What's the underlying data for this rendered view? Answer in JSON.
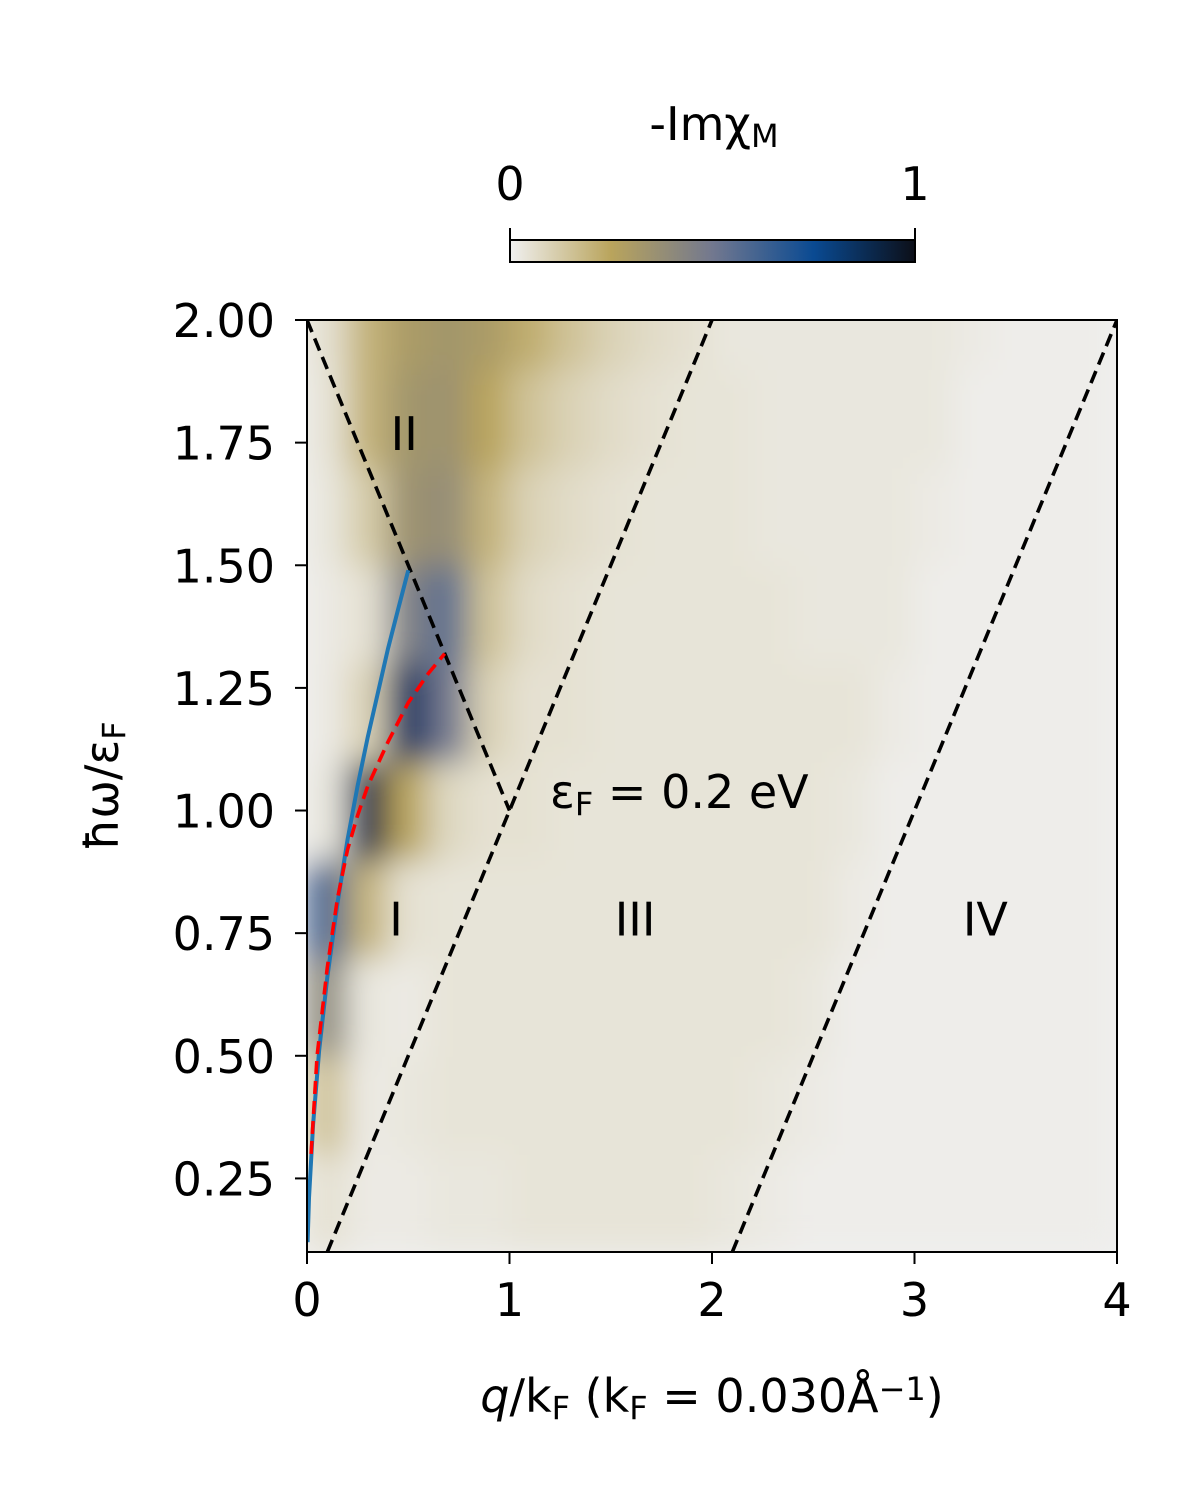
{
  "chart_data": {
    "type": "heatmap",
    "colorbar": {
      "label": [
        {
          "t": "-Imχ"
        },
        {
          "sub": "M"
        }
      ],
      "clim": [
        0,
        1
      ],
      "ticks": [
        0,
        1
      ]
    },
    "colormap": [
      "#f0f0f0",
      "#b9a45c",
      "#72788f",
      "#0a4a92",
      "#0c0f18"
    ],
    "xlabel": [
      {
        "t": "q"
      },
      {
        "t": "/k"
      },
      {
        "sub": "F"
      },
      {
        "t": " (k"
      },
      {
        "sub": "F"
      },
      {
        "t": " = 0.030Å"
      },
      {
        "sup": "−1"
      },
      {
        "t": ")"
      }
    ],
    "ylabel": [
      {
        "t": "ħω/ε"
      },
      {
        "sub": "F"
      }
    ],
    "xlim": [
      0,
      4
    ],
    "ylim": [
      0.1,
      2.0
    ],
    "xticks": [
      0,
      1,
      2,
      3,
      4
    ],
    "yticks": [
      0.25,
      {
        "value": 0.5,
        "label": "0.50"
      },
      0.75,
      {
        "value": 1.0,
        "label": "1.00"
      },
      1.25,
      {
        "value": 1.5,
        "label": "1.50"
      },
      1.75,
      {
        "value": 2.0,
        "label": "2.00"
      }
    ],
    "heatmap": {
      "x": [
        0.1,
        0.3,
        0.5,
        0.7,
        0.9,
        1.1,
        1.3,
        1.5,
        1.7,
        1.9,
        2.1,
        2.3,
        2.5,
        2.7,
        2.9,
        3.1,
        3.3,
        3.5,
        3.7,
        3.9
      ],
      "y": [
        0.2,
        0.4,
        0.6,
        0.8,
        1.0,
        1.2,
        1.4,
        1.6,
        1.8,
        2.0
      ],
      "z": [
        [
          0.05,
          0.02,
          0.02,
          0.03,
          0.03,
          0.04,
          0.04,
          0.04,
          0.04,
          0.04,
          0.03,
          0.02,
          0.01,
          0.01,
          0.01,
          0.01,
          0.01,
          0.01,
          0.01,
          0.01
        ],
        [
          0.15,
          0.02,
          0.03,
          0.04,
          0.04,
          0.04,
          0.04,
          0.04,
          0.04,
          0.04,
          0.04,
          0.03,
          0.02,
          0.01,
          0.01,
          0.01,
          0.01,
          0.01,
          0.01,
          0.01
        ],
        [
          0.4,
          0.03,
          0.02,
          0.04,
          0.04,
          0.04,
          0.04,
          0.04,
          0.04,
          0.04,
          0.04,
          0.04,
          0.03,
          0.01,
          0.01,
          0.01,
          0.01,
          0.01,
          0.01,
          0.01
        ],
        [
          0.6,
          0.2,
          0.05,
          0.04,
          0.04,
          0.04,
          0.04,
          0.04,
          0.04,
          0.04,
          0.04,
          0.04,
          0.04,
          0.02,
          0.01,
          0.01,
          0.01,
          0.01,
          0.01,
          0.01
        ],
        [
          0.03,
          0.9,
          0.25,
          0.08,
          0.05,
          0.05,
          0.04,
          0.04,
          0.04,
          0.04,
          0.04,
          0.04,
          0.04,
          0.03,
          0.01,
          0.01,
          0.01,
          0.01,
          0.01,
          0.01
        ],
        [
          0.02,
          0.1,
          0.85,
          0.5,
          0.1,
          0.05,
          0.05,
          0.04,
          0.04,
          0.04,
          0.04,
          0.04,
          0.04,
          0.04,
          0.02,
          0.01,
          0.01,
          0.01,
          0.01,
          0.01
        ],
        [
          0.02,
          0.05,
          0.45,
          0.55,
          0.15,
          0.07,
          0.05,
          0.04,
          0.04,
          0.04,
          0.04,
          0.04,
          0.03,
          0.03,
          0.03,
          0.01,
          0.01,
          0.01,
          0.01,
          0.01
        ],
        [
          0.03,
          0.12,
          0.35,
          0.38,
          0.2,
          0.1,
          0.07,
          0.05,
          0.04,
          0.04,
          0.04,
          0.03,
          0.03,
          0.03,
          0.03,
          0.02,
          0.01,
          0.01,
          0.01,
          0.01
        ],
        [
          0.04,
          0.2,
          0.33,
          0.35,
          0.25,
          0.15,
          0.1,
          0.07,
          0.05,
          0.04,
          0.04,
          0.03,
          0.03,
          0.03,
          0.03,
          0.03,
          0.01,
          0.01,
          0.01,
          0.01
        ],
        [
          0.05,
          0.2,
          0.3,
          0.33,
          0.3,
          0.22,
          0.15,
          0.1,
          0.07,
          0.05,
          0.03,
          0.03,
          0.03,
          0.03,
          0.03,
          0.03,
          0.02,
          0.01,
          0.01,
          0.01
        ]
      ]
    },
    "series": [
      {
        "color": "#000000",
        "style": "dashed",
        "x": [
          0,
          1
        ],
        "values": [
          2.0,
          1.0
        ]
      },
      {
        "color": "#000000",
        "style": "dashed",
        "x": [
          0.1,
          2
        ],
        "values": [
          0.1,
          2.0
        ]
      },
      {
        "color": "#000000",
        "style": "dashed",
        "x": [
          2.1,
          4
        ],
        "values": [
          0.1,
          2.0
        ]
      },
      {
        "color": "#1f77b4",
        "style": "solid",
        "x": [
          0.003,
          0.01,
          0.03,
          0.06,
          0.1,
          0.15,
          0.2,
          0.25,
          0.3,
          0.35,
          0.4,
          0.45,
          0.5
        ],
        "values": [
          0.12,
          0.21,
          0.36,
          0.51,
          0.66,
          0.81,
          0.94,
          1.05,
          1.15,
          1.24,
          1.33,
          1.41,
          1.49
        ]
      },
      {
        "color": "#ff0000",
        "style": "dashed",
        "x": [
          0.02,
          0.05,
          0.1,
          0.15,
          0.2,
          0.25,
          0.3,
          0.4,
          0.5,
          0.6,
          0.68
        ],
        "values": [
          0.3,
          0.5,
          0.68,
          0.82,
          0.92,
          0.99,
          1.05,
          1.14,
          1.22,
          1.28,
          1.32
        ]
      }
    ],
    "annotations": [
      {
        "text": [
          {
            "t": "II"
          }
        ],
        "x": 0.48,
        "y": 1.77,
        "anchor": "middle"
      },
      {
        "text": [
          {
            "t": "I"
          }
        ],
        "x": 0.44,
        "y": 0.78,
        "anchor": "middle"
      },
      {
        "text": [
          {
            "t": "III"
          }
        ],
        "x": 1.62,
        "y": 0.78,
        "anchor": "middle"
      },
      {
        "text": [
          {
            "t": "IV"
          }
        ],
        "x": 3.35,
        "y": 0.78,
        "anchor": "middle"
      },
      {
        "text": [
          {
            "t": "ε"
          },
          {
            "sub": "F"
          },
          {
            "t": " =  0.2 eV"
          }
        ],
        "x": 1.2,
        "y": 1.04,
        "anchor": "start"
      }
    ]
  }
}
